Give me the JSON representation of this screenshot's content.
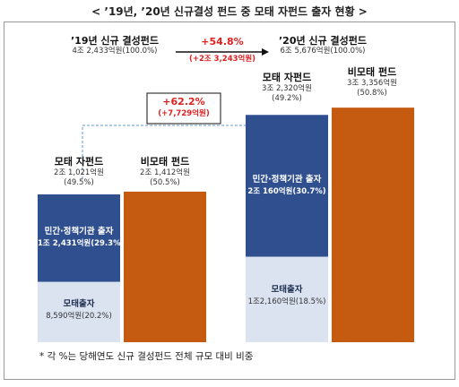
{
  "title": "< ’19년, ’20년 신규결성 펀드 중 모태 자펀드 출자 현황 >",
  "top": {
    "y19_label": "’19년 신규 결성펀드",
    "y19_value": "4조 2,433억원(100.0%)",
    "y20_label": "’20년 신규 결성펀드",
    "y20_value": "6조 5,676억원(100.0%)",
    "growth_pct": "+54.8%",
    "growth_amt": "(+2조 3,243억원)"
  },
  "middle_growth": {
    "pct": "+62.2%",
    "amt": "(+7,729억원)"
  },
  "colors": {
    "navy": "#2f4f8f",
    "light": "#dbe3f1",
    "orange": "#c55a11",
    "red": "#e02020",
    "dash": "#5b9bd5"
  },
  "chart_data": {
    "type": "bar",
    "unit": "억원",
    "categories": [
      "’19년",
      "’20년"
    ],
    "groups": [
      {
        "year": "’19년",
        "mother": {
          "label": "모태 자펀드",
          "amount": "2조 1,021억원",
          "pct": "(49.5%)",
          "value": 21021,
          "segments": [
            {
              "label": "민간·정책기관 출자",
              "amount": "1조 2,431억원(29.3%)",
              "value": 12431
            },
            {
              "label": "모태출자",
              "amount": "8,590억원(20.2%)",
              "value": 8590
            }
          ]
        },
        "non_mother": {
          "label": "비모태 펀드",
          "amount": "2조 1,412억원",
          "pct": "(50.5%)",
          "value": 21412
        }
      },
      {
        "year": "’20년",
        "mother": {
          "label": "모태 자펀드",
          "amount": "3조 2,320억원",
          "pct": "(49.2%)",
          "value": 32320,
          "segments": [
            {
              "label": "민간·정책기관 출자",
              "amount": "2조 160억원(30.7%)",
              "value": 20160
            },
            {
              "label": "모태출자",
              "amount": "1조2,160억원(18.5%)",
              "value": 12160
            }
          ]
        },
        "non_mother": {
          "label": "비모태 펀드",
          "amount": "3조 3,356억원",
          "pct": "(50.8%)",
          "value": 33356
        }
      }
    ]
  },
  "footnote": "* 각 %는 당해연도 신규 결성펀드 전체 규모 대비 비중"
}
